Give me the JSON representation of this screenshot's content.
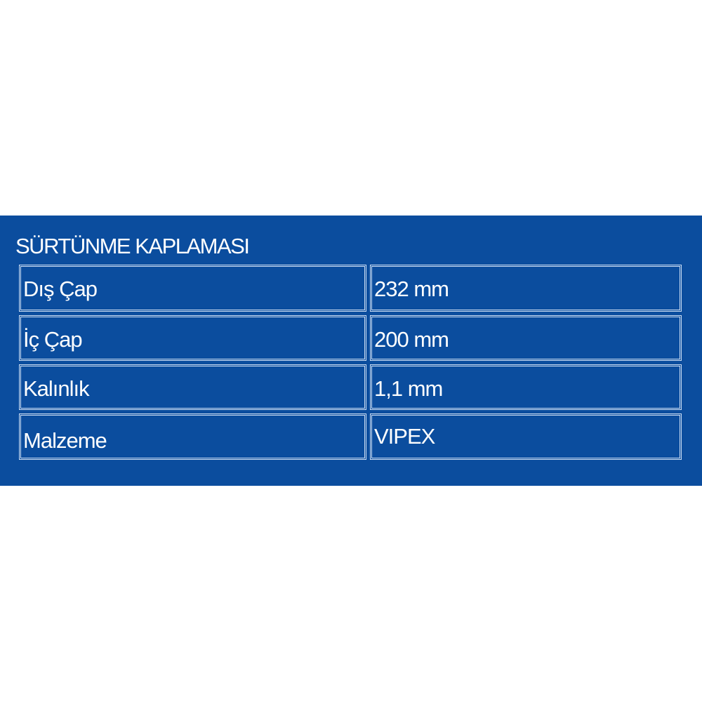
{
  "title": "SÜRTÜNME KAPLAMASI",
  "rows": [
    {
      "label": "Dış Çap",
      "value": "232 mm"
    },
    {
      "label": "İç Çap",
      "value": "200 mm"
    },
    {
      "label": "Kalınlık",
      "value": "1,1 mm"
    },
    {
      "label": "Malzeme",
      "value": "VIPEX"
    }
  ],
  "colors": {
    "background": "#0b4d9e",
    "text": "#ffffff",
    "border": "#cfe0f5"
  }
}
